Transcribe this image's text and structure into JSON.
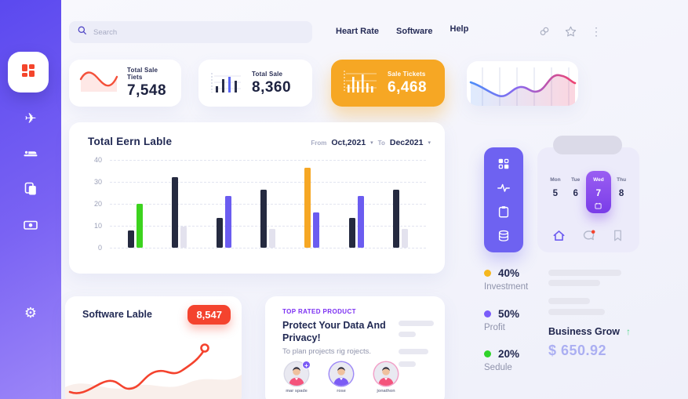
{
  "header": {
    "search_placeholder": "Search",
    "nav": [
      {
        "label": "Heart Rate"
      },
      {
        "label": "Software"
      },
      {
        "label": "Help"
      }
    ]
  },
  "icons": {
    "plane_glyph": "✈",
    "gear_glyph": "⚙",
    "kebab_glyph": "⋮",
    "caret_glyph": "▾",
    "arrow_up_glyph": "↑",
    "plus_glyph": "+"
  },
  "stat_cards": [
    {
      "label": "Total Sale Tiets",
      "value": "7,548"
    },
    {
      "label": "Total Sale",
      "value": "8,360"
    },
    {
      "label": "Sale Tickets",
      "value": "6,468"
    },
    {
      "label": "",
      "value": ""
    }
  ],
  "main_chart": {
    "title": "Total Eern Lable",
    "from_label": "From",
    "from_value": "Oct,2021",
    "to_label": "To",
    "to_value": "Dec2021"
  },
  "chart_data": {
    "type": "bar",
    "title": "Total Eern Lable",
    "ylim": [
      0,
      40
    ],
    "yticks": [
      0,
      10,
      20,
      30,
      40
    ],
    "grid": "dashed-horizontal",
    "legend_position": "none",
    "palette": {
      "dark": "#252a40",
      "green": "#3cd31e",
      "purple": "#6b5cf0",
      "orange": "#f6a724",
      "light": "#e3e2ee"
    },
    "groups": [
      {
        "bars": [
          {
            "value": 8,
            "color": "#252a40"
          },
          {
            "value": 20,
            "color": "#3cd31e"
          }
        ]
      },
      {
        "bars": [
          {
            "value": 32,
            "color": "#252a40"
          },
          {
            "value": 9.5,
            "color": "#e3e2ee"
          }
        ]
      },
      {
        "bars": [
          {
            "value": 13.5,
            "color": "#252a40"
          },
          {
            "value": 23.5,
            "color": "#6b5cf0"
          }
        ]
      },
      {
        "bars": [
          {
            "value": 26.5,
            "color": "#252a40"
          },
          {
            "value": 8.5,
            "color": "#e3e2ee"
          }
        ]
      },
      {
        "bars": [
          {
            "value": 36.5,
            "color": "#f6a724"
          },
          {
            "value": 16,
            "color": "#6b5cf0"
          }
        ]
      },
      {
        "bars": [
          {
            "value": 13.5,
            "color": "#252a40"
          },
          {
            "value": 23.5,
            "color": "#6b5cf0"
          }
        ]
      },
      {
        "bars": [
          {
            "value": 26.5,
            "color": "#252a40"
          },
          {
            "value": 8.5,
            "color": "#e3e2ee"
          }
        ]
      }
    ]
  },
  "software_card": {
    "title": "Software Lable",
    "badge": "8,547"
  },
  "top_rated": {
    "tag": "TOP RATED PRODUCT",
    "heading": "Protect Your Data And Privacy!",
    "subtext": "To plan projects rig rojects.",
    "avatars": [
      {
        "name": "mar spade",
        "shirt": "#f4547c",
        "ring": "#d9d9e6",
        "has_plus": true
      },
      {
        "name": "rose",
        "shirt": "#7b5cf5",
        "ring": "#9f8bf7",
        "has_plus": false
      },
      {
        "name": "jonathon",
        "shirt": "#f4547c",
        "ring": "#f2a0c8",
        "has_plus": false
      }
    ]
  },
  "calendar": {
    "days": [
      {
        "day": "Mon",
        "date": "5",
        "selected": false
      },
      {
        "day": "Tue",
        "date": "6",
        "selected": false
      },
      {
        "day": "Wed",
        "date": "7",
        "selected": true
      },
      {
        "day": "Thu",
        "date": "8",
        "selected": false
      }
    ]
  },
  "legend": [
    {
      "percent": "40%",
      "label": "Investment",
      "color": "#f5b71e"
    },
    {
      "percent": "50%",
      "label": "Profit",
      "color": "#7a5cfa"
    },
    {
      "percent": "20%",
      "label": "Sedule",
      "color": "#2fd32a"
    }
  ],
  "business": {
    "label": "Business Grow",
    "value": "$ 650.92"
  }
}
